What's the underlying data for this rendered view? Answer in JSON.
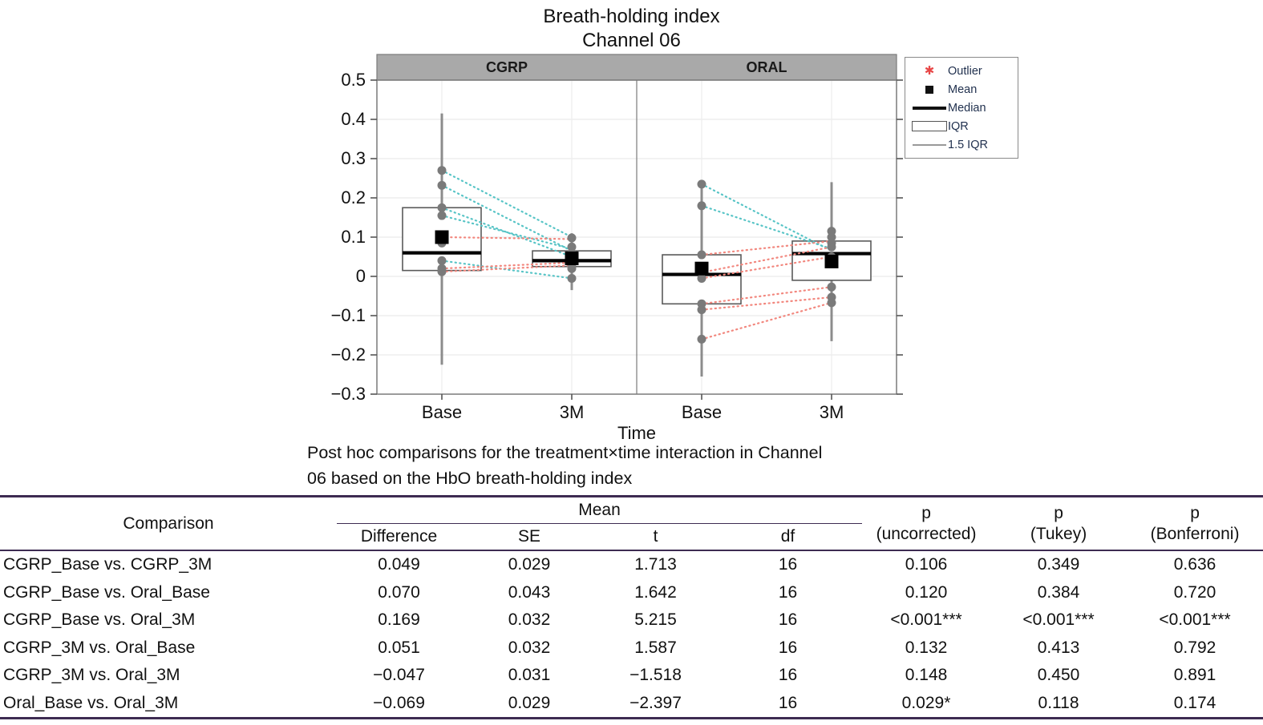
{
  "title": {
    "line1": "Breath-holding index",
    "line2": "Channel 06"
  },
  "caption": {
    "line1": "Post hoc comparisons for the treatment×time interaction in Channel",
    "line2": "06 based on the HbO breath-holding index"
  },
  "chart_data": {
    "type": "boxplot",
    "title": "Breath-holding index",
    "subtitle": "Channel 06",
    "xlabel": "Time",
    "ylim": [
      -0.3,
      0.5
    ],
    "yticks": [
      0.5,
      0.4,
      0.3,
      0.2,
      0.1,
      0,
      -0.1,
      -0.2,
      -0.3
    ],
    "grid": true,
    "legend_position": "top-right",
    "panels": [
      {
        "label": "CGRP",
        "groups": [
          {
            "label": "Base",
            "q1": 0.015,
            "median": 0.06,
            "q3": 0.175,
            "mean": 0.1,
            "whisker_low": -0.225,
            "whisker_high": 0.415,
            "points": [
              0.27,
              0.232,
              0.175,
              0.155,
              0.085,
              0.04,
              0.02,
              0.012
            ]
          },
          {
            "label": "3M",
            "q1": 0.025,
            "median": 0.04,
            "q3": 0.065,
            "mean": 0.046,
            "whisker_low": -0.035,
            "whisker_high": 0.11,
            "points": [
              0.098,
              0.075,
              0.06,
              0.05,
              0.03,
              0.02,
              -0.005
            ]
          }
        ],
        "pairs": [
          {
            "base": 0.27,
            "m3": 0.1,
            "color": "teal"
          },
          {
            "base": 0.232,
            "m3": 0.065,
            "color": "teal"
          },
          {
            "base": 0.175,
            "m3": 0.05,
            "color": "teal"
          },
          {
            "base": 0.155,
            "m3": 0.07,
            "color": "teal"
          },
          {
            "base": 0.1,
            "m3": 0.095,
            "color": "salmon"
          },
          {
            "base": 0.04,
            "m3": -0.005,
            "color": "teal"
          },
          {
            "base": 0.02,
            "m3": 0.035,
            "color": "salmon"
          },
          {
            "base": 0.012,
            "m3": 0.028,
            "color": "salmon"
          }
        ]
      },
      {
        "label": "ORAL",
        "groups": [
          {
            "label": "Base",
            "q1": -0.07,
            "median": 0.005,
            "q3": 0.055,
            "mean": 0.02,
            "whisker_low": -0.255,
            "whisker_high": 0.235,
            "points": [
              0.235,
              0.18,
              0.055,
              0.01,
              -0.005,
              -0.07,
              -0.085,
              -0.16
            ]
          },
          {
            "label": "3M",
            "q1": -0.01,
            "median": 0.058,
            "q3": 0.09,
            "mean": 0.038,
            "whisker_low": -0.165,
            "whisker_high": 0.24,
            "points": [
              0.115,
              0.1,
              0.085,
              0.075,
              0.05,
              -0.027,
              -0.053,
              -0.067
            ]
          }
        ],
        "pairs": [
          {
            "base": 0.235,
            "m3": 0.065,
            "color": "teal"
          },
          {
            "base": 0.18,
            "m3": 0.07,
            "color": "teal"
          },
          {
            "base": 0.055,
            "m3": 0.09,
            "color": "salmon"
          },
          {
            "base": 0.01,
            "m3": 0.075,
            "color": "salmon"
          },
          {
            "base": -0.005,
            "m3": 0.05,
            "color": "salmon"
          },
          {
            "base": -0.07,
            "m3": -0.027,
            "color": "salmon"
          },
          {
            "base": -0.085,
            "m3": -0.053,
            "color": "salmon"
          },
          {
            "base": -0.16,
            "m3": -0.067,
            "color": "salmon"
          }
        ]
      }
    ],
    "legend": [
      {
        "label": "Outlier",
        "marker": "asterisk"
      },
      {
        "label": "Mean",
        "marker": "square"
      },
      {
        "label": "Median",
        "marker": "thick-line"
      },
      {
        "label": "IQR",
        "marker": "box"
      },
      {
        "label": "1.5 IQR",
        "marker": "thin-line"
      }
    ],
    "colors": {
      "teal": "#57c4c6",
      "salmon": "#f2877e",
      "outlier": "#e84848",
      "panel_header_bg": "#a9a9a9",
      "box_edge": "#5a5a5a",
      "whisker": "#8c8c8c",
      "point": "#7a7a7a",
      "median": "#000000",
      "mean": "#000000"
    }
  },
  "table": {
    "col1_header": "Comparison",
    "group_header": "Mean",
    "sub_headers": [
      "Difference",
      "SE",
      "t",
      "df"
    ],
    "p_headers": [
      {
        "line1": "p",
        "line2": "(uncorrected)"
      },
      {
        "line1": "p",
        "line2": "(Tukey)"
      },
      {
        "line1": "p",
        "line2": "(Bonferroni)"
      }
    ],
    "rows": [
      {
        "comparison": "CGRP_Base vs. CGRP_3M",
        "difference": "0.049",
        "se": "0.029",
        "t": "1.713",
        "df": "16",
        "p_uncorrected": "0.106",
        "p_tukey": "0.349",
        "p_bonferroni": "0.636"
      },
      {
        "comparison": "CGRP_Base vs. Oral_Base",
        "difference": "0.070",
        "se": "0.043",
        "t": "1.642",
        "df": "16",
        "p_uncorrected": "0.120",
        "p_tukey": "0.384",
        "p_bonferroni": "0.720"
      },
      {
        "comparison": "CGRP_Base vs. Oral_3M",
        "difference": "0.169",
        "se": "0.032",
        "t": "5.215",
        "df": "16",
        "p_uncorrected": "<0.001***",
        "p_tukey": "<0.001***",
        "p_bonferroni": "<0.001***"
      },
      {
        "comparison": "CGRP_3M vs. Oral_Base",
        "difference": "0.051",
        "se": "0.032",
        "t": "1.587",
        "df": "16",
        "p_uncorrected": "0.132",
        "p_tukey": "0.413",
        "p_bonferroni": "0.792"
      },
      {
        "comparison": "CGRP_3M vs. Oral_3M",
        "difference": "−0.047",
        "se": "0.031",
        "t": "−1.518",
        "df": "16",
        "p_uncorrected": "0.148",
        "p_tukey": "0.450",
        "p_bonferroni": "0.891"
      },
      {
        "comparison": "Oral_Base vs. Oral_3M",
        "difference": "−0.069",
        "se": "0.029",
        "t": "−2.397",
        "df": "16",
        "p_uncorrected": "0.029*",
        "p_tukey": "0.118",
        "p_bonferroni": "0.174"
      }
    ]
  }
}
